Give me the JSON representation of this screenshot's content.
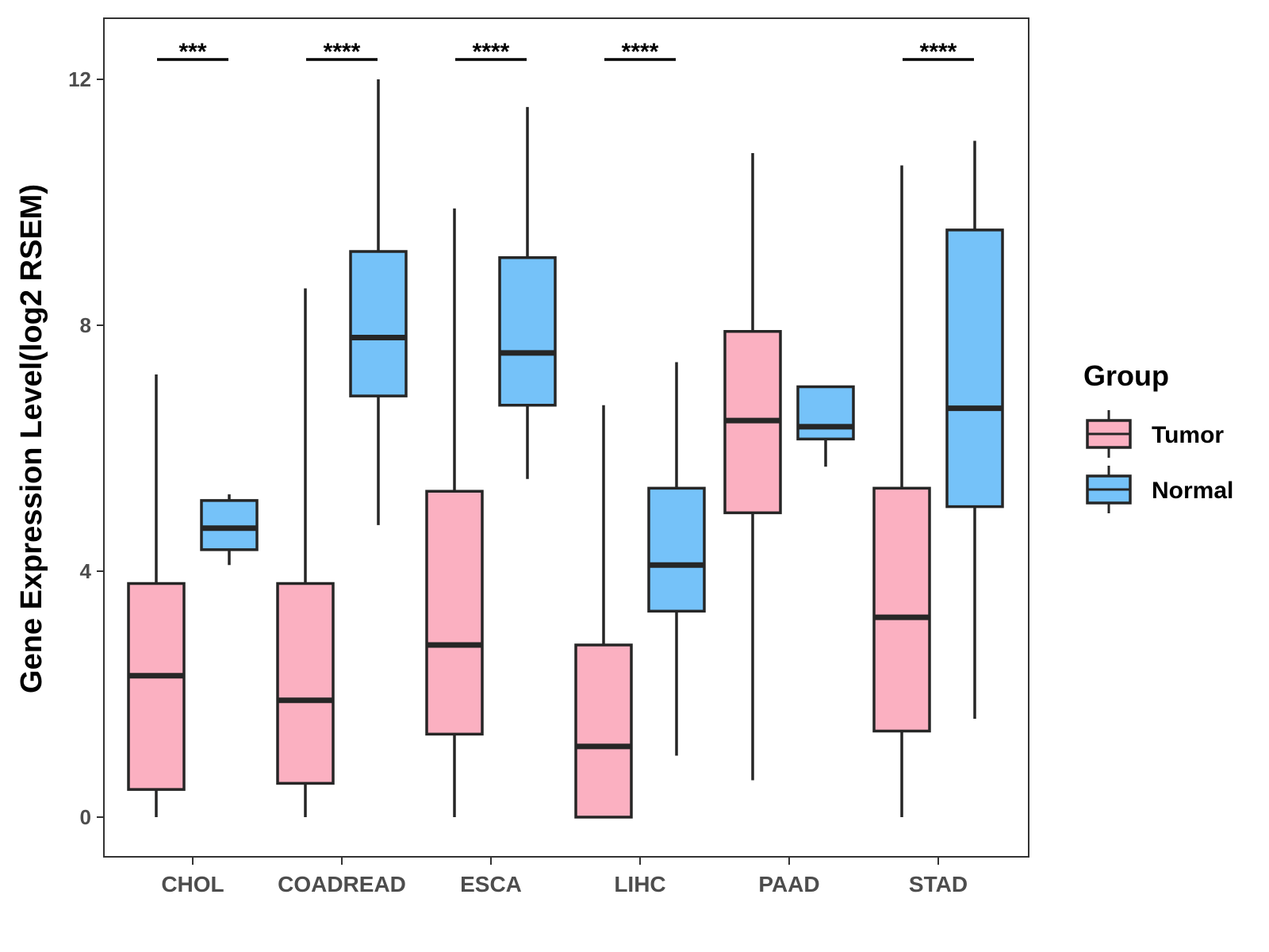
{
  "chart_data": {
    "type": "boxplot",
    "title": "",
    "xlabel": "",
    "ylabel": "Gene Expression Level(log2 RSEM)",
    "ylim": [
      -0.6,
      12.95
    ],
    "yticks": [
      0,
      4,
      8,
      12
    ],
    "categories": [
      "CHOL",
      "COADREAD",
      "ESCA",
      "LIHC",
      "PAAD",
      "STAD"
    ],
    "legend": {
      "title": "Group",
      "position": "right",
      "entries": [
        {
          "name": "Tumor",
          "color": "#FBB0C1"
        },
        {
          "name": "Normal",
          "color": "#75C2F9"
        }
      ]
    },
    "series": [
      {
        "name": "Tumor",
        "color": "#FBB0C1",
        "boxes": [
          {
            "min": 0.0,
            "q1": 0.45,
            "median": 2.3,
            "q3": 3.8,
            "max": 7.2
          },
          {
            "min": 0.0,
            "q1": 0.55,
            "median": 1.9,
            "q3": 3.8,
            "max": 8.6
          },
          {
            "min": 0.0,
            "q1": 1.35,
            "median": 2.8,
            "q3": 5.3,
            "max": 9.9
          },
          {
            "min": 0.0,
            "q1": 0.0,
            "median": 1.15,
            "q3": 2.8,
            "max": 6.7
          },
          {
            "min": 0.6,
            "q1": 4.95,
            "median": 6.45,
            "q3": 7.9,
            "max": 10.8
          },
          {
            "min": 0.0,
            "q1": 1.4,
            "median": 3.25,
            "q3": 5.35,
            "max": 10.6
          }
        ]
      },
      {
        "name": "Normal",
        "color": "#75C2F9",
        "boxes": [
          {
            "min": 4.1,
            "q1": 4.35,
            "median": 4.7,
            "q3": 5.15,
            "max": 5.25
          },
          {
            "min": 4.75,
            "q1": 6.85,
            "median": 7.8,
            "q3": 9.2,
            "max": 12.0
          },
          {
            "min": 5.5,
            "q1": 6.7,
            "median": 7.55,
            "q3": 9.1,
            "max": 11.55
          },
          {
            "min": 1.0,
            "q1": 3.35,
            "median": 4.1,
            "q3": 5.35,
            "max": 7.4
          },
          {
            "min": 5.7,
            "q1": 6.15,
            "median": 6.35,
            "q3": 7.0,
            "max": 7.0
          },
          {
            "min": 1.6,
            "q1": 5.05,
            "median": 6.65,
            "q3": 9.55,
            "max": 11.0
          }
        ]
      }
    ],
    "significance": [
      "***",
      "****",
      "****",
      "****",
      "",
      "****"
    ]
  }
}
